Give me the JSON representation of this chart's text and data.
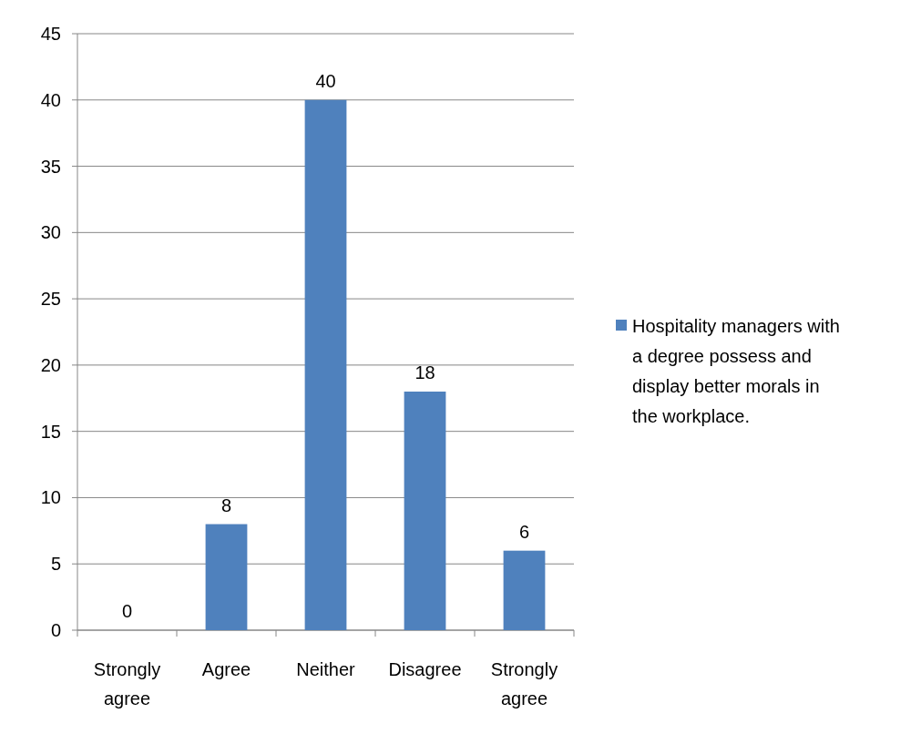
{
  "chart_data": {
    "type": "bar",
    "categories": [
      "Strongly agree",
      "Agree",
      "Neither",
      "Disagree",
      "Strongly agree"
    ],
    "series": [
      {
        "name": "Hospitality managers with a degree possess and display better morals in the workplace.",
        "color": "#4f81bd",
        "values": [
          0,
          8,
          40,
          18,
          6
        ]
      }
    ],
    "ylim": [
      0,
      45
    ],
    "yticks": [
      0,
      5,
      10,
      15,
      20,
      25,
      30,
      35,
      40,
      45
    ],
    "grid": "y",
    "legend": "right",
    "data_labels": true
  }
}
